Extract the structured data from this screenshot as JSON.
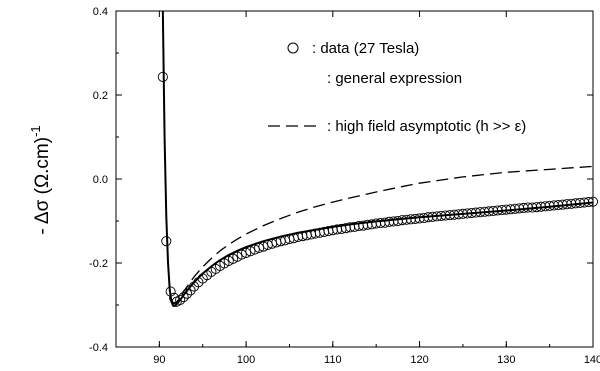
{
  "chart_data": {
    "type": "scatter",
    "title": "",
    "xlabel": "",
    "ylabel": "- Δσ    (Ω.cm)",
    "ylabel_superscript": "-1",
    "xlim": [
      85,
      140
    ],
    "ylim": [
      -0.4,
      0.4
    ],
    "x_ticks": [
      "90",
      "100",
      "110",
      "120",
      "130",
      "140"
    ],
    "y_ticks": [
      "0.4",
      "0.2",
      "0.0",
      "-0.2",
      "-0.4"
    ],
    "grid": false,
    "legend_position": "top-right",
    "series": [
      {
        "name": ": data (27 Tesla)",
        "kind": "markers",
        "marker": "open-circle",
        "x": [
          90.4,
          90.8,
          91.3,
          91.7,
          92.0,
          92.4,
          92.8,
          93.2,
          93.6,
          94.0,
          94.5,
          95.0,
          95.5,
          96.0,
          96.5,
          97.0,
          97.5,
          98.0,
          98.5,
          99.0,
          99.5,
          100.0,
          100.5,
          101.0,
          101.5,
          102.0,
          102.5,
          103.0,
          103.5,
          104.0,
          104.5,
          105.0,
          105.5,
          106.0,
          106.5,
          107.0,
          107.5,
          108.0,
          108.5,
          109.0,
          109.5,
          110.0,
          110.5,
          111.0,
          111.5,
          112.0,
          112.5,
          113.0,
          113.5,
          114.0,
          114.5,
          115.0,
          115.5,
          116.0,
          116.5,
          117.0,
          117.5,
          118.0,
          118.5,
          119.0,
          119.5,
          120.0,
          120.5,
          121.0,
          121.5,
          122.0,
          122.5,
          123.0,
          123.5,
          124.0,
          124.5,
          125.0,
          125.5,
          126.0,
          126.5,
          127.0,
          127.5,
          128.0,
          128.5,
          129.0,
          129.5,
          130.0,
          130.5,
          131.0,
          131.5,
          132.0,
          132.5,
          133.0,
          133.5,
          134.0,
          134.5,
          135.0,
          135.5,
          136.0,
          136.5,
          137.0,
          137.5,
          138.0,
          138.5,
          139.0,
          139.5,
          140.0
        ],
        "y": [
          0.243,
          -0.148,
          -0.268,
          -0.283,
          -0.292,
          -0.288,
          -0.281,
          -0.273,
          -0.265,
          -0.256,
          -0.246,
          -0.237,
          -0.229,
          -0.221,
          -0.214,
          -0.207,
          -0.201,
          -0.195,
          -0.19,
          -0.185,
          -0.18,
          -0.176,
          -0.172,
          -0.168,
          -0.164,
          -0.161,
          -0.157,
          -0.154,
          -0.151,
          -0.148,
          -0.146,
          -0.143,
          -0.141,
          -0.138,
          -0.136,
          -0.134,
          -0.132,
          -0.13,
          -0.128,
          -0.126,
          -0.124,
          -0.122,
          -0.12,
          -0.119,
          -0.117,
          -0.115,
          -0.114,
          -0.112,
          -0.111,
          -0.109,
          -0.108,
          -0.106,
          -0.105,
          -0.104,
          -0.102,
          -0.101,
          -0.1,
          -0.098,
          -0.097,
          -0.096,
          -0.095,
          -0.094,
          -0.093,
          -0.091,
          -0.09,
          -0.089,
          -0.088,
          -0.087,
          -0.086,
          -0.085,
          -0.084,
          -0.083,
          -0.082,
          -0.081,
          -0.08,
          -0.079,
          -0.078,
          -0.077,
          -0.076,
          -0.075,
          -0.074,
          -0.073,
          -0.072,
          -0.071,
          -0.07,
          -0.069,
          -0.068,
          -0.068,
          -0.067,
          -0.066,
          -0.065,
          -0.064,
          -0.063,
          -0.062,
          -0.061,
          -0.06,
          -0.059,
          -0.058,
          -0.057,
          -0.056,
          -0.055,
          -0.054
        ]
      },
      {
        "name": ": general expression",
        "kind": "line",
        "style": "solid",
        "x": [
          90.4,
          90.6,
          90.8,
          91.0,
          91.2,
          91.4,
          91.6,
          91.8,
          92.0,
          92.5,
          93.0,
          93.5,
          94.0,
          95.0,
          96.0,
          97.0,
          98.0,
          99.0,
          100.0,
          102.0,
          104.0,
          106.0,
          108.0,
          110.0,
          112.0,
          115.0,
          118.0,
          120.0,
          125.0,
          130.0,
          135.0,
          140.0
        ],
        "y": [
          0.4,
          0.1,
          -0.09,
          -0.2,
          -0.265,
          -0.293,
          -0.302,
          -0.302,
          -0.298,
          -0.285,
          -0.271,
          -0.258,
          -0.246,
          -0.225,
          -0.208,
          -0.193,
          -0.181,
          -0.171,
          -0.162,
          -0.148,
          -0.137,
          -0.128,
          -0.121,
          -0.114,
          -0.108,
          -0.101,
          -0.095,
          -0.091,
          -0.083,
          -0.075,
          -0.066,
          -0.056
        ]
      },
      {
        "name": ": high field asymptotic (h >> ε)",
        "kind": "line",
        "style": "dashed",
        "x": [
          90.4,
          90.6,
          90.8,
          91.0,
          91.2,
          91.4,
          91.6,
          91.8,
          92.0,
          92.5,
          93.0,
          93.5,
          94.0,
          95.0,
          96.0,
          97.0,
          98.0,
          99.0,
          100.0,
          102.0,
          104.0,
          106.0,
          108.0,
          110.0,
          112.0,
          115.0,
          118.0,
          120.0,
          125.0,
          130.0,
          135.0,
          140.0
        ],
        "y": [
          0.4,
          0.1,
          -0.09,
          -0.2,
          -0.26,
          -0.287,
          -0.296,
          -0.297,
          -0.293,
          -0.278,
          -0.262,
          -0.247,
          -0.233,
          -0.209,
          -0.189,
          -0.171,
          -0.156,
          -0.143,
          -0.131,
          -0.111,
          -0.094,
          -0.079,
          -0.066,
          -0.055,
          -0.045,
          -0.031,
          -0.018,
          -0.01,
          0.005,
          0.016,
          0.023,
          0.03
        ]
      }
    ]
  }
}
